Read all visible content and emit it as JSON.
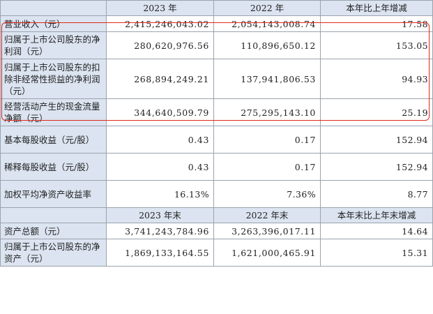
{
  "header1": {
    "col0": "",
    "col1": "2023 年",
    "col2": "2022 年",
    "col3": "本年比上年增减"
  },
  "rows1": [
    {
      "label": "营业收入（元）",
      "v2023": "2,415,246,043.02",
      "v2022": "2,054,143,008.74",
      "change": "17.58"
    },
    {
      "label": "归属于上市公司股东的净利润（元）",
      "v2023": "280,620,976.56",
      "v2022": "110,896,650.12",
      "change": "153.05"
    },
    {
      "label": "归属于上市公司股东的扣除非经常性损益的净利润（元）",
      "v2023": "268,894,249.21",
      "v2022": "137,941,806.53",
      "change": "94.93"
    },
    {
      "label": "经营活动产生的现金流量净额（元）",
      "v2023": "344,640,509.79",
      "v2022": "275,295,143.10",
      "change": "25.19"
    },
    {
      "label": "基本每股收益（元/股）",
      "v2023": "0.43",
      "v2022": "0.17",
      "change": "152.94"
    },
    {
      "label": "稀释每股收益（元/股）",
      "v2023": "0.43",
      "v2022": "0.17",
      "change": "152.94"
    },
    {
      "label": "加权平均净资产收益率",
      "v2023": "16.13%",
      "v2022": "7.36%",
      "change": "8.77"
    }
  ],
  "header2": {
    "col0": "",
    "col1": "2023 年末",
    "col2": "2022 年末",
    "col3": "本年末比上年末增减"
  },
  "rows2": [
    {
      "label": "资产总额（元）",
      "v2023": "3,741,243,784.96",
      "v2022": "3,263,396,017.11",
      "change": "14.64"
    },
    {
      "label": "归属于上市公司股东的净资产（元）",
      "v2023": "1,869,133,164.55",
      "v2022": "1,621,000,465.91",
      "change": "15.31"
    }
  ],
  "highlight_color": "#e0281c"
}
